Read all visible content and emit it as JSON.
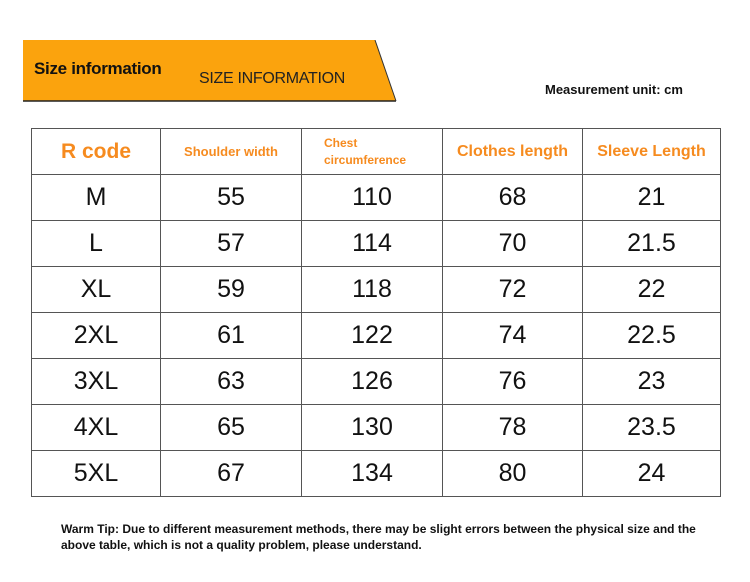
{
  "banner": {
    "title": "Size information",
    "subtitle": "SIZE INFORMATION",
    "color": "#FBA30D"
  },
  "unit": "Measurement unit: cm",
  "table": {
    "headers": [
      "R code",
      "Shoulder width",
      "Chest circumference",
      "Clothes length",
      "Sleeve Length"
    ],
    "header_color": "#F68B1F",
    "rows": [
      [
        "M",
        "55",
        "110",
        "68",
        "21"
      ],
      [
        "L",
        "57",
        "114",
        "70",
        "21.5"
      ],
      [
        "XL",
        "59",
        "118",
        "72",
        "22"
      ],
      [
        "2XL",
        "61",
        "122",
        "74",
        "22.5"
      ],
      [
        "3XL",
        "63",
        "126",
        "76",
        "23"
      ],
      [
        "4XL",
        "65",
        "130",
        "78",
        "23.5"
      ],
      [
        "5XL",
        "67",
        "134",
        "80",
        "24"
      ]
    ]
  },
  "tip": "Warm Tip: Due to different measurement methods, there may be slight errors between the physical size and the above table, which is not a quality problem, please understand."
}
